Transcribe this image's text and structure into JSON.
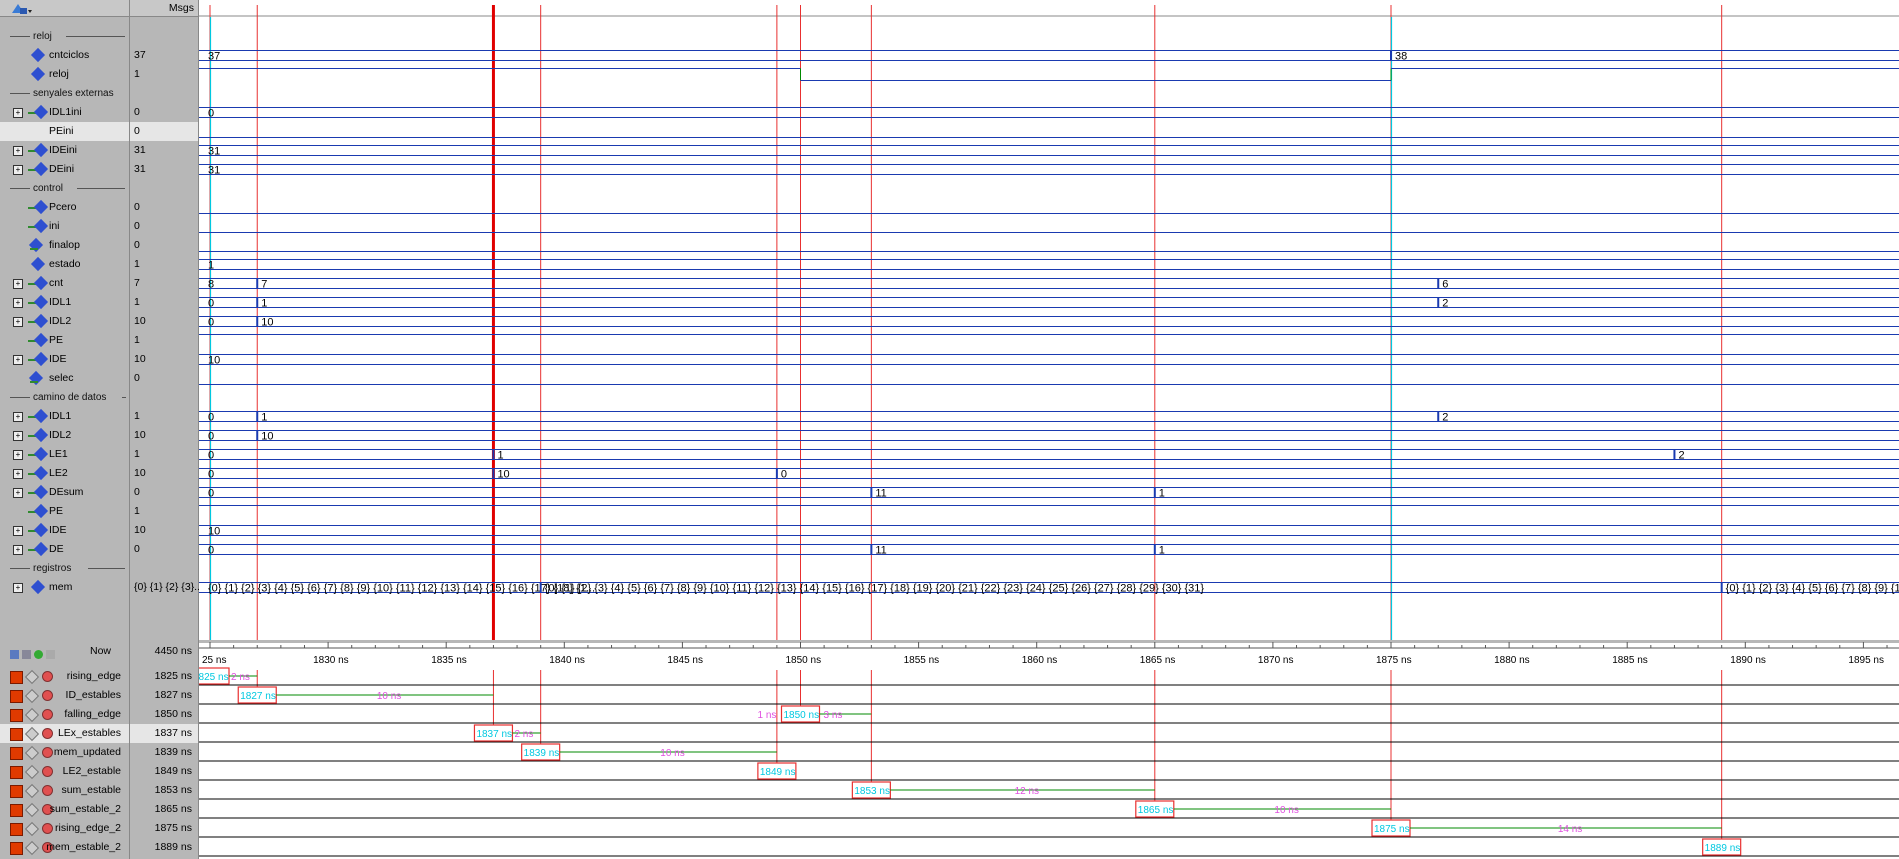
{
  "header": {
    "msgs_label": "Msgs"
  },
  "rows": [
    {
      "kind": "group",
      "label": "reloj"
    },
    {
      "kind": "sig",
      "name": "cntciclos",
      "value": "37",
      "expand": false,
      "icon": "dia"
    },
    {
      "kind": "sig",
      "name": "reloj",
      "value": "1",
      "expand": false,
      "icon": "dia"
    },
    {
      "kind": "group",
      "label": "senyales externas"
    },
    {
      "kind": "sig",
      "name": "IDL1ini",
      "value": "0",
      "expand": true,
      "icon": "in"
    },
    {
      "kind": "sig",
      "name": "PEini",
      "value": "0",
      "expand": false,
      "icon": "none",
      "highlight": true
    },
    {
      "kind": "sig",
      "name": "IDEini",
      "value": "31",
      "expand": true,
      "icon": "in"
    },
    {
      "kind": "sig",
      "name": "DEini",
      "value": "31",
      "expand": true,
      "icon": "in"
    },
    {
      "kind": "group",
      "label": "control"
    },
    {
      "kind": "sig",
      "name": "Pcero",
      "value": "0",
      "expand": false,
      "icon": "in"
    },
    {
      "kind": "sig",
      "name": "ini",
      "value": "0",
      "expand": false,
      "icon": "in"
    },
    {
      "kind": "sig",
      "name": "finalop",
      "value": "0",
      "expand": false,
      "icon": "out"
    },
    {
      "kind": "sig",
      "name": "estado",
      "value": "1",
      "expand": false,
      "icon": "dia"
    },
    {
      "kind": "sig",
      "name": "cnt",
      "value": "7",
      "expand": true,
      "icon": "in"
    },
    {
      "kind": "sig",
      "name": "IDL1",
      "value": "1",
      "expand": true,
      "icon": "in"
    },
    {
      "kind": "sig",
      "name": "IDL2",
      "value": "10",
      "expand": true,
      "icon": "in"
    },
    {
      "kind": "sig",
      "name": "PE",
      "value": "1",
      "expand": false,
      "icon": "in"
    },
    {
      "kind": "sig",
      "name": "IDE",
      "value": "10",
      "expand": true,
      "icon": "in"
    },
    {
      "kind": "sig",
      "name": "selec",
      "value": "0",
      "expand": false,
      "icon": "out"
    },
    {
      "kind": "group",
      "label": "camino de datos"
    },
    {
      "kind": "sig",
      "name": "IDL1",
      "value": "1",
      "expand": true,
      "icon": "in"
    },
    {
      "kind": "sig",
      "name": "IDL2",
      "value": "10",
      "expand": true,
      "icon": "in"
    },
    {
      "kind": "sig",
      "name": "LE1",
      "value": "1",
      "expand": true,
      "icon": "in"
    },
    {
      "kind": "sig",
      "name": "LE2",
      "value": "10",
      "expand": true,
      "icon": "in"
    },
    {
      "kind": "sig",
      "name": "DEsum",
      "value": "0",
      "expand": true,
      "icon": "in"
    },
    {
      "kind": "sig",
      "name": "PE",
      "value": "1",
      "expand": false,
      "icon": "in"
    },
    {
      "kind": "sig",
      "name": "IDE",
      "value": "10",
      "expand": true,
      "icon": "in"
    },
    {
      "kind": "sig",
      "name": "DE",
      "value": "0",
      "expand": true,
      "icon": "in"
    },
    {
      "kind": "group",
      "label": "registros"
    },
    {
      "kind": "sig",
      "name": "mem",
      "value": "{0} {1} {2} {3}...",
      "expand": true,
      "icon": "dia"
    }
  ],
  "now": {
    "label": "Now",
    "value": "4450 ns"
  },
  "cursors": [
    {
      "name": "rising_edge",
      "value": "1825 ns",
      "time": 1825,
      "delta": "2 ns"
    },
    {
      "name": "ID_estables",
      "value": "1827 ns",
      "time": 1827,
      "delta": "10 ns"
    },
    {
      "name": "falling_edge",
      "value": "1850 ns",
      "time": 1850,
      "delta": "3 ns",
      "pre": "1 ns"
    },
    {
      "name": "LEx_estables",
      "value": "1837 ns",
      "time": 1837,
      "delta": "2 ns",
      "highlight": true
    },
    {
      "name": "mem_updated",
      "value": "1839 ns",
      "time": 1839,
      "delta": "10 ns"
    },
    {
      "name": "LE2_estable",
      "value": "1849 ns",
      "time": 1849,
      "delta": ""
    },
    {
      "name": "sum_estable",
      "value": "1853 ns",
      "time": 1853,
      "delta": "12 ns"
    },
    {
      "name": "sum_estable_2",
      "value": "1865 ns",
      "time": 1865,
      "delta": "10 ns"
    },
    {
      "name": "rising_edge_2",
      "value": "1875 ns",
      "time": 1875,
      "delta": "14 ns"
    },
    {
      "name": "mem_estable_2",
      "value": "1889 ns",
      "time": 1889,
      "delta": ""
    }
  ],
  "ruler": {
    "labels": [
      "25 ns",
      "1830 ns",
      "1835 ns",
      "1840 ns",
      "1845 ns",
      "1850 ns",
      "1855 ns",
      "1860 ns",
      "1865 ns",
      "1870 ns",
      "1875 ns",
      "1880 ns",
      "1885 ns",
      "1890 ns",
      "1895 ns"
    ]
  },
  "wave_labels": {
    "cntciclos_a": "37",
    "cntciclos_b": "38",
    "IDL1ini": "0",
    "IDEini": "31",
    "DEini": "31",
    "estado": "1",
    "cnt_a": "8",
    "cnt_b": "7",
    "cnt_c": "6",
    "IDL1c_a": "0",
    "IDL1c_b": "1",
    "IDL1c_c": "2",
    "IDL2c_a": "0",
    "IDL2c_b": "10",
    "IDEc": "10",
    "IDL1d_a": "0",
    "IDL1d_b": "1",
    "IDL1d_c": "2",
    "IDL2d_a": "0",
    "IDL2d_b": "10",
    "LE1_a": "0",
    "LE1_b": "1",
    "LE1_c": "2",
    "LE2_a": "0",
    "LE2_b": "10",
    "LE2_c": "0",
    "DEsum_a": "0",
    "DEsum_b": "11",
    "DEsum_c": "1",
    "IDEd": "10",
    "DE_a": "0",
    "DE_b": "11",
    "DE_c": "1",
    "mem_a": "{0} {1} {2} {3} {4} {5} {6} {7} {8} {9} {10} {11} {12} {13} {14} {15} {16} {17} {18} {1...",
    "mem_b": "{0} {1} {2} {3} {4} {5} {6} {7} {8} {9} {10} {11} {12} {13} {14} {15} {16} {17} {18} {19} {20} {21} {22} {23} {24} {25} {26} {27} {28} {29} {30} {31}",
    "mem_c": "{0} {1} {2} {3} {4} {5} {6} {7} {8} {9} {1..."
  },
  "colors": {
    "cursor": "#e83030",
    "active_cursor": "#e00000",
    "cyan": "#00c8e0",
    "wave": "#1a3ab0",
    "magenta": "#e050e0",
    "green": "#008800"
  }
}
